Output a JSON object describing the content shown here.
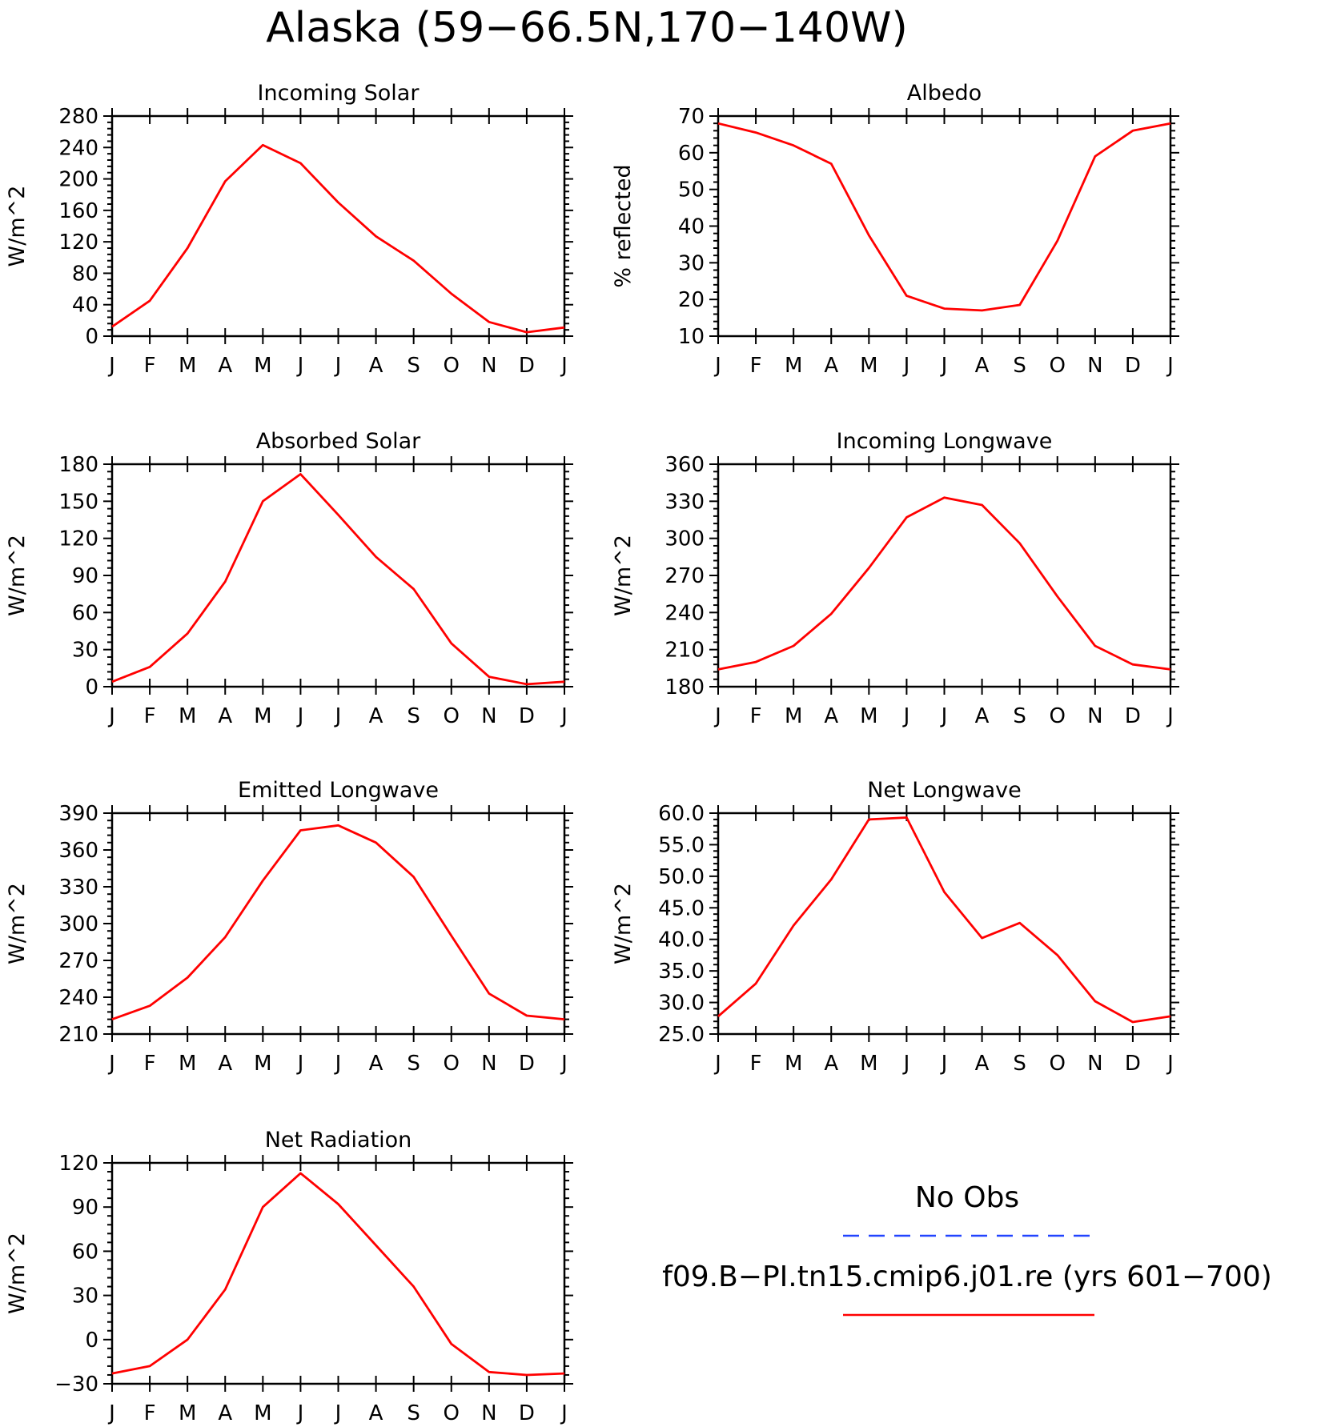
{
  "title": "Alaska (59−66.5N,170−140W)",
  "legend": {
    "entries": [
      {
        "label": "No Obs",
        "color": "#2244ff",
        "style": "dashed"
      },
      {
        "label": "f09.B−PI.tn15.cmip6.j01.re (yrs 601−700)",
        "color": "#ff0000",
        "style": "solid"
      }
    ]
  },
  "chart_data": [
    {
      "type": "line",
      "title": "Incoming Solar",
      "xlabel": "",
      "ylabel": "W/m^2",
      "categories": [
        "J",
        "F",
        "M",
        "A",
        "M",
        "J",
        "J",
        "A",
        "S",
        "O",
        "N",
        "D",
        "J"
      ],
      "ylim": [
        0,
        280
      ],
      "yticks": [
        0,
        40,
        80,
        120,
        160,
        200,
        240,
        280
      ],
      "ytick_labels": [
        "0",
        "40",
        "80",
        "120",
        "160",
        "200",
        "240",
        "280"
      ],
      "yminor": 5,
      "series": [
        {
          "color": "#ff0000",
          "values": [
            12,
            45,
            112,
            197,
            243,
            220,
            170,
            127,
            96,
            54,
            18,
            5,
            11
          ]
        }
      ]
    },
    {
      "type": "line",
      "title": "Albedo",
      "xlabel": "",
      "ylabel": "% reflected",
      "categories": [
        "J",
        "F",
        "M",
        "A",
        "M",
        "J",
        "J",
        "A",
        "S",
        "O",
        "N",
        "D",
        "J"
      ],
      "ylim": [
        10,
        70
      ],
      "yticks": [
        10,
        20,
        30,
        40,
        50,
        60,
        70
      ],
      "ytick_labels": [
        "10",
        "20",
        "30",
        "40",
        "50",
        "60",
        "70"
      ],
      "yminor": 5,
      "series": [
        {
          "color": "#ff0000",
          "values": [
            68,
            65.5,
            62,
            57,
            37.5,
            21,
            17.5,
            17,
            18.5,
            36,
            59,
            66,
            68
          ]
        }
      ]
    },
    {
      "type": "line",
      "title": "Absorbed Solar",
      "xlabel": "",
      "ylabel": "W/m^2",
      "categories": [
        "J",
        "F",
        "M",
        "A",
        "M",
        "J",
        "J",
        "A",
        "S",
        "O",
        "N",
        "D",
        "J"
      ],
      "ylim": [
        0,
        180
      ],
      "yticks": [
        0,
        30,
        60,
        90,
        120,
        150,
        180
      ],
      "ytick_labels": [
        "0",
        "30",
        "60",
        "90",
        "120",
        "150",
        "180"
      ],
      "yminor": 5,
      "series": [
        {
          "color": "#ff0000",
          "values": [
            4,
            16,
            43,
            85,
            150,
            172,
            139,
            105,
            79,
            35,
            8,
            2,
            4
          ]
        }
      ]
    },
    {
      "type": "line",
      "title": "Incoming Longwave",
      "xlabel": "",
      "ylabel": "W/m^2",
      "categories": [
        "J",
        "F",
        "M",
        "A",
        "M",
        "J",
        "J",
        "A",
        "S",
        "O",
        "N",
        "D",
        "J"
      ],
      "ylim": [
        180,
        360
      ],
      "yticks": [
        180,
        210,
        240,
        270,
        300,
        330,
        360
      ],
      "ytick_labels": [
        "180",
        "210",
        "240",
        "270",
        "300",
        "330",
        "360"
      ],
      "yminor": 5,
      "series": [
        {
          "color": "#ff0000",
          "values": [
            194,
            200,
            213,
            239,
            276,
            317,
            333,
            327,
            296,
            253,
            213,
            198,
            194
          ]
        }
      ]
    },
    {
      "type": "line",
      "title": "Emitted Longwave",
      "xlabel": "",
      "ylabel": "W/m^2",
      "categories": [
        "J",
        "F",
        "M",
        "A",
        "M",
        "J",
        "J",
        "A",
        "S",
        "O",
        "N",
        "D",
        "J"
      ],
      "ylim": [
        210,
        390
      ],
      "yticks": [
        210,
        240,
        270,
        300,
        330,
        360,
        390
      ],
      "ytick_labels": [
        "210",
        "240",
        "270",
        "300",
        "330",
        "360",
        "390"
      ],
      "yminor": 5,
      "series": [
        {
          "color": "#ff0000",
          "values": [
            222,
            233,
            256,
            289,
            335,
            376,
            380,
            366,
            338,
            290,
            243,
            225,
            222
          ]
        }
      ]
    },
    {
      "type": "line",
      "title": "Net Longwave",
      "xlabel": "",
      "ylabel": "W/m^2",
      "categories": [
        "J",
        "F",
        "M",
        "A",
        "M",
        "J",
        "J",
        "A",
        "S",
        "O",
        "N",
        "D",
        "J"
      ],
      "ylim": [
        25,
        60
      ],
      "yticks": [
        25,
        30,
        35,
        40,
        45,
        50,
        55,
        60
      ],
      "ytick_labels": [
        "25.0",
        "30.0",
        "35.0",
        "40.0",
        "45.0",
        "50.0",
        "55.0",
        "60.0"
      ],
      "yminor": 5,
      "series": [
        {
          "color": "#ff0000",
          "values": [
            27.8,
            33,
            42.2,
            49.5,
            59,
            59.3,
            47.5,
            40.2,
            42.6,
            37.5,
            30.2,
            26.9,
            27.8
          ]
        }
      ]
    },
    {
      "type": "line",
      "title": "Net Radiation",
      "xlabel": "",
      "ylabel": "W/m^2",
      "categories": [
        "J",
        "F",
        "M",
        "A",
        "M",
        "J",
        "J",
        "A",
        "S",
        "O",
        "N",
        "D",
        "J"
      ],
      "ylim": [
        -30,
        120
      ],
      "yticks": [
        -30,
        0,
        30,
        60,
        90,
        120
      ],
      "ytick_labels": [
        "−30",
        "0",
        "30",
        "60",
        "90",
        "120"
      ],
      "yminor": 5,
      "series": [
        {
          "color": "#ff0000",
          "values": [
            -23,
            -18,
            0,
            34,
            90,
            113,
            92,
            64,
            36,
            -3,
            -22,
            -24,
            -23
          ]
        }
      ]
    }
  ]
}
